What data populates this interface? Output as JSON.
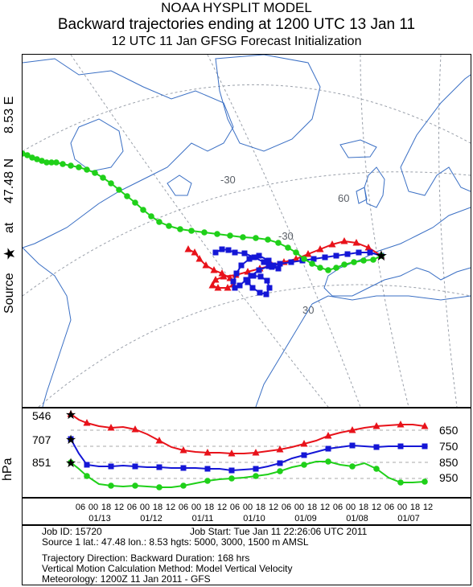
{
  "header": {
    "line1": "NOAA HYSPLIT MODEL",
    "line2": "Backward trajectories ending at 1200 UTC 13 Jan 11",
    "line3": "12 UTC 11 Jan    GFSG  Forecast Initialization"
  },
  "source_label": {
    "prefix": "Source",
    "star": "★",
    "at": "at",
    "lat": "47.48 N",
    "lon": "8.53 E"
  },
  "map": {
    "graticule_labels": [
      "60",
      "-30",
      "30",
      "-30"
    ],
    "colors": {
      "land_outline": "#3a6fc4",
      "graticule": "#9aa0aa",
      "source_star": "#000000"
    }
  },
  "trajectories": [
    {
      "name": "5000 m",
      "color": "#e8121a",
      "marker": "triangle"
    },
    {
      "name": "3000 m",
      "color": "#1416d6",
      "marker": "square"
    },
    {
      "name": "1500 m",
      "color": "#1fd019",
      "marker": "circle"
    }
  ],
  "profile": {
    "ylabel": "hPa",
    "left_labels": [
      "546",
      "707",
      "851"
    ],
    "right_labels": [
      "650",
      "750",
      "850",
      "950"
    ],
    "time_ticks": [
      "06",
      "00",
      "18",
      "12",
      "06",
      "00",
      "18",
      "12",
      "06",
      "00",
      "18",
      "12",
      "06",
      "00",
      "18",
      "12",
      "06",
      "00",
      "18",
      "12",
      "06",
      "00",
      "18",
      "12",
      "06",
      "00",
      "18",
      "12"
    ],
    "dates": [
      "01/13",
      "01/12",
      "01/11",
      "01/10",
      "01/09",
      "01/08",
      "01/07"
    ]
  },
  "info": {
    "job_id": "Job ID: 15720",
    "job_start": "Job Start: Tue Jan 11 22:26:06 UTC 2011",
    "source_line": "Source 1 lat.: 47.48  lon.: 8.53  hgts: 5000, 3000, 1500 m AMSL",
    "direction": "Trajectory Direction: Backward      Duration: 168 hrs",
    "vertical": "Vertical Motion Calculation Method:       Model Vertical Velocity",
    "meteorology": "Meteorology: 1200Z 11 Jan 2011 - GFS"
  }
}
